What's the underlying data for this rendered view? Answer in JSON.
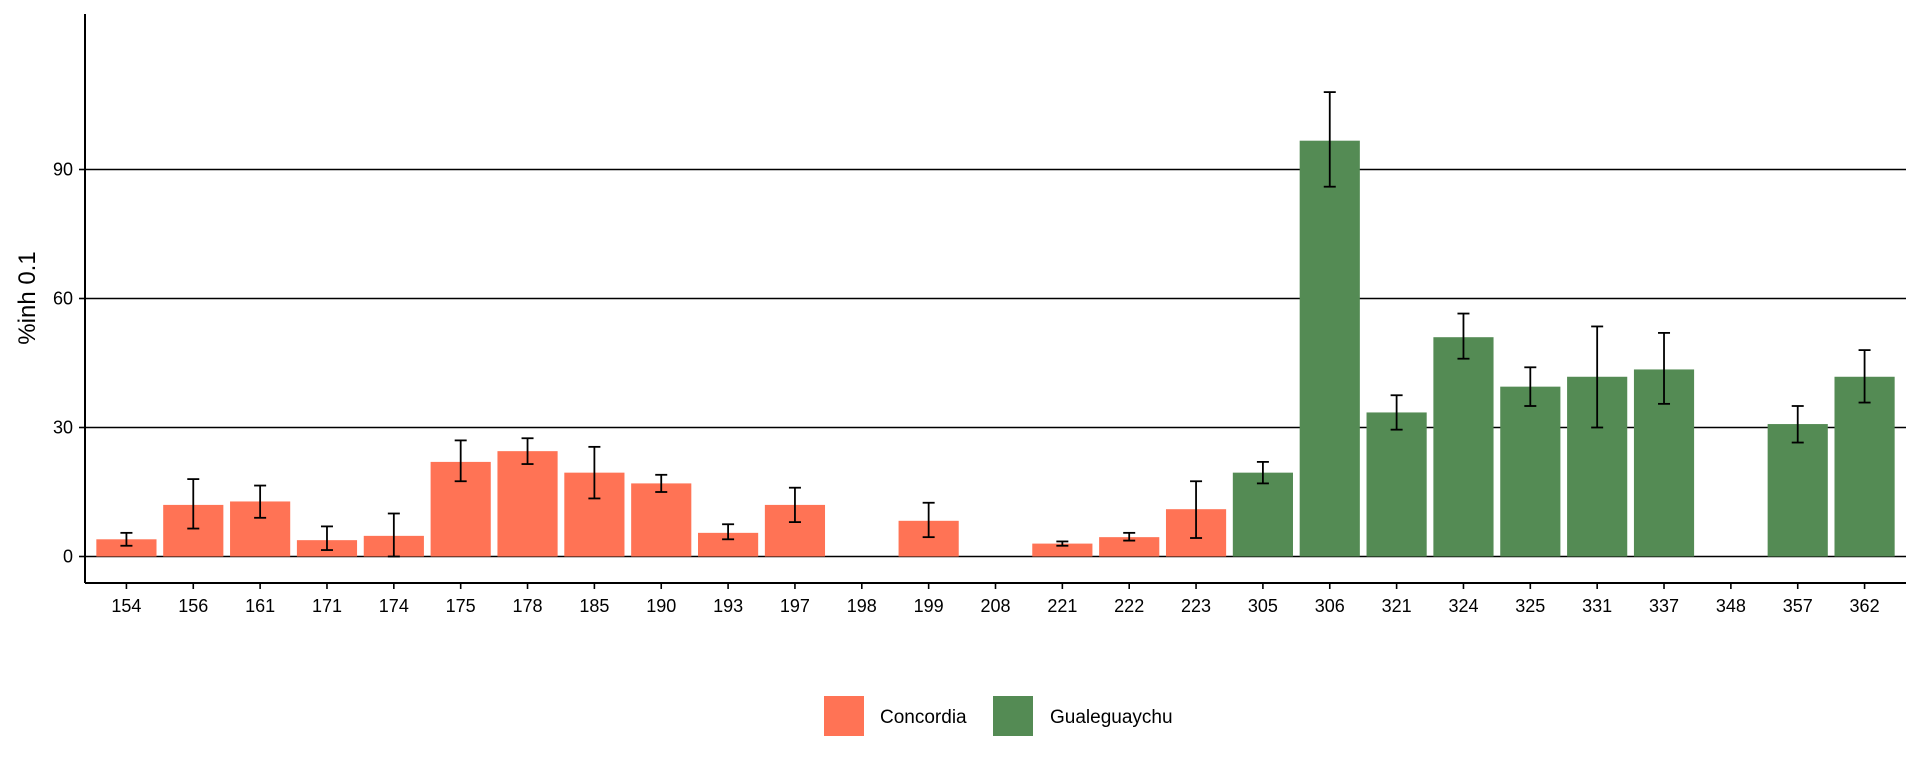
{
  "chart_data": {
    "type": "bar",
    "title": "",
    "xlabel": "",
    "ylabel": "%inh 0.1",
    "ylim": [
      -5,
      113
    ],
    "yticks": [
      0,
      30,
      60,
      90
    ],
    "grid": "horizontal",
    "legend_position": "bottom",
    "categories": [
      "154",
      "156",
      "161",
      "171",
      "174",
      "175",
      "178",
      "185",
      "190",
      "193",
      "197",
      "198",
      "199",
      "208",
      "221",
      "222",
      "223",
      "305",
      "306",
      "321",
      "324",
      "325",
      "331",
      "337",
      "348",
      "357",
      "362"
    ],
    "values": [
      4,
      12,
      12.8,
      3.8,
      4.8,
      22,
      24.5,
      19.5,
      17,
      5.5,
      12,
      0,
      8.3,
      0,
      3,
      4.5,
      11,
      19.5,
      96.7,
      33.5,
      51,
      39.5,
      41.8,
      43.5,
      0,
      30.8,
      41.8
    ],
    "error_low": [
      2.5,
      6.5,
      9,
      1.5,
      0,
      17.5,
      21.5,
      13.5,
      15,
      4,
      8,
      0,
      4.5,
      0,
      2.5,
      3.7,
      4.3,
      17,
      86,
      29.5,
      46,
      35,
      30,
      35.5,
      0,
      26.5,
      35.8
    ],
    "error_high": [
      5.5,
      18,
      16.5,
      7,
      10,
      27,
      27.5,
      25.5,
      19,
      7.5,
      16,
      0,
      12.5,
      0,
      3.5,
      5.5,
      17.5,
      22,
      108,
      37.5,
      56.5,
      44,
      53.5,
      52,
      0,
      35,
      48
    ],
    "groups": [
      "Concordia",
      "Concordia",
      "Concordia",
      "Concordia",
      "Concordia",
      "Concordia",
      "Concordia",
      "Concordia",
      "Concordia",
      "Concordia",
      "Concordia",
      "Concordia",
      "Concordia",
      "Concordia",
      "Concordia",
      "Concordia",
      "Concordia",
      "Gualeguaychu",
      "Gualeguaychu",
      "Gualeguaychu",
      "Gualeguaychu",
      "Gualeguaychu",
      "Gualeguaychu",
      "Gualeguaychu",
      "Gualeguaychu",
      "Gualeguaychu",
      "Gualeguaychu"
    ],
    "legend": [
      {
        "name": "Concordia",
        "color": "#ff7355"
      },
      {
        "name": "Gualeguaychu",
        "color": "#548b54"
      }
    ]
  }
}
